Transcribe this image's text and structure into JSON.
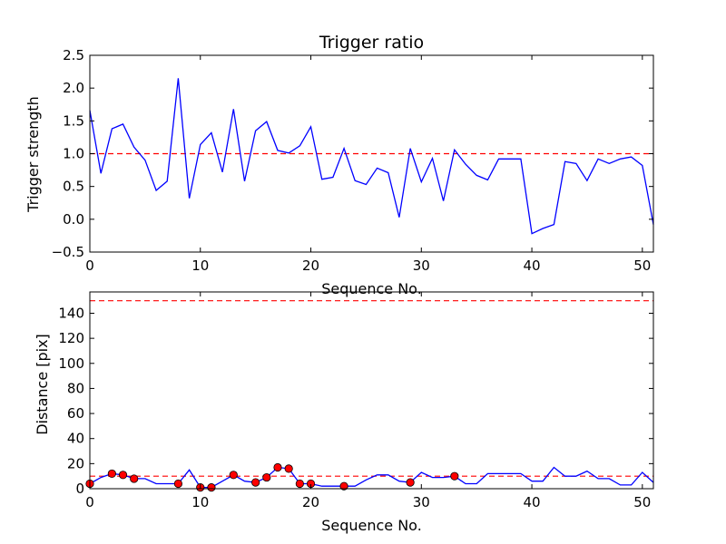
{
  "chart_data": [
    {
      "type": "line",
      "title": "Trigger ratio",
      "xlabel": "Sequence No.",
      "ylabel": "Trigger strength",
      "xlim": [
        0,
        51
      ],
      "ylim": [
        -0.5,
        2.5
      ],
      "xticks": [
        "0",
        "10",
        "20",
        "30",
        "40",
        "50"
      ],
      "yticks": [
        "−0.5",
        "0.0",
        "0.5",
        "1.0",
        "1.5",
        "2.0",
        "2.5"
      ],
      "line_color": "#0000ff",
      "reference_line": {
        "y": 1.0,
        "color": "#ff0000",
        "style": "dashed"
      },
      "series": [
        {
          "name": "trigger strength",
          "x": [
            0,
            1,
            2,
            3,
            4,
            5,
            6,
            7,
            8,
            9,
            10,
            11,
            12,
            13,
            14,
            15,
            16,
            17,
            18,
            19,
            20,
            21,
            22,
            23,
            24,
            25,
            26,
            27,
            28,
            29,
            30,
            31,
            32,
            33,
            34,
            35,
            36,
            37,
            38,
            39,
            40,
            41,
            42,
            43,
            44,
            45,
            46,
            47,
            48,
            49,
            50,
            51
          ],
          "values": [
            1.66,
            0.7,
            1.38,
            1.45,
            1.1,
            0.9,
            0.44,
            0.58,
            2.15,
            0.32,
            1.14,
            1.32,
            0.72,
            1.68,
            0.58,
            1.35,
            1.49,
            1.05,
            1.01,
            1.12,
            1.41,
            0.61,
            0.64,
            1.08,
            0.59,
            0.53,
            0.78,
            0.71,
            0.03,
            1.08,
            0.57,
            0.93,
            0.28,
            1.06,
            0.84,
            0.67,
            0.6,
            0.92,
            0.92,
            0.92,
            -0.22,
            -0.14,
            -0.08,
            0.88,
            0.85,
            0.59,
            0.92,
            0.85,
            0.92,
            0.95,
            0.82,
            -0.08
          ]
        }
      ]
    },
    {
      "type": "line",
      "title": "",
      "xlabel": "Sequence No.",
      "ylabel": "Distance [pix]",
      "xlim": [
        0,
        51
      ],
      "ylim": [
        0,
        157
      ],
      "xticks": [
        "0",
        "10",
        "20",
        "30",
        "40",
        "50"
      ],
      "yticks": [
        "0",
        "20",
        "40",
        "60",
        "80",
        "100",
        "120",
        "140"
      ],
      "line_color": "#0000ff",
      "marker_color": "#ff0000",
      "reference_lines": [
        {
          "y": 10,
          "color": "#ff0000",
          "style": "dashed"
        },
        {
          "y": 150,
          "color": "#ff0000",
          "style": "dashed"
        }
      ],
      "series": [
        {
          "name": "distance",
          "x": [
            0,
            1,
            2,
            3,
            4,
            5,
            6,
            7,
            8,
            9,
            10,
            11,
            12,
            13,
            14,
            15,
            16,
            17,
            18,
            19,
            20,
            21,
            22,
            23,
            24,
            25,
            26,
            27,
            28,
            29,
            30,
            31,
            32,
            33,
            34,
            35,
            36,
            37,
            38,
            39,
            40,
            41,
            42,
            43,
            44,
            45,
            46,
            47,
            48,
            49,
            50,
            51
          ],
          "values": [
            4,
            9,
            12,
            11,
            8,
            8,
            4,
            4,
            4,
            15,
            1,
            1,
            6,
            11,
            6,
            5,
            9,
            17,
            16,
            4,
            4,
            2,
            2,
            2,
            2,
            7,
            11,
            11,
            6,
            5,
            13,
            9,
            9,
            10,
            4,
            4,
            12,
            12,
            12,
            12,
            6,
            6,
            17,
            10,
            10,
            14,
            8,
            8,
            3,
            3,
            13,
            5
          ]
        }
      ],
      "markers": {
        "x": [
          0,
          2,
          3,
          4,
          8,
          10,
          11,
          13,
          15,
          16,
          17,
          18,
          19,
          20,
          23,
          29,
          33
        ],
        "values": [
          4,
          12,
          11,
          8,
          4,
          1,
          1,
          11,
          5,
          9,
          17,
          16,
          4,
          4,
          2,
          5,
          10
        ]
      }
    }
  ]
}
